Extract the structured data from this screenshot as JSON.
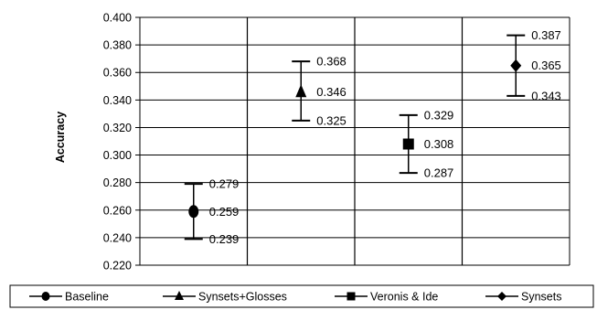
{
  "chart_data": {
    "type": "scatter",
    "variant": "error-bar",
    "title": "",
    "xlabel": "",
    "ylabel": "Accuracy",
    "ylim": [
      0.22,
      0.4
    ],
    "yticks": [
      "0.400",
      "0.380",
      "0.360",
      "0.340",
      "0.320",
      "0.300",
      "0.280",
      "0.260",
      "0.240",
      "0.220"
    ],
    "grid": true,
    "legend_position": "bottom",
    "series": [
      {
        "name": "Baseline",
        "marker": "circle",
        "x": 1,
        "mean": 0.259,
        "upper": 0.279,
        "lower": 0.239,
        "labels": {
          "upper": "0.279",
          "mean": "0.259",
          "lower": "0.239"
        }
      },
      {
        "name": "Synsets+Glosses",
        "marker": "triangle",
        "x": 2,
        "mean": 0.346,
        "upper": 0.368,
        "lower": 0.325,
        "labels": {
          "upper": "0.368",
          "mean": "0.346",
          "lower": "0.325"
        }
      },
      {
        "name": "Veronis & Ide",
        "marker": "square",
        "x": 3,
        "mean": 0.308,
        "upper": 0.329,
        "lower": 0.287,
        "labels": {
          "upper": "0.329",
          "mean": "0.308",
          "lower": "0.287"
        }
      },
      {
        "name": "Synsets",
        "marker": "diamond",
        "x": 4,
        "mean": 0.365,
        "upper": 0.387,
        "lower": 0.343,
        "labels": {
          "upper": "0.387",
          "mean": "0.365",
          "lower": "0.343"
        }
      }
    ],
    "colors": {
      "marks": "#000000",
      "grid": "#000000",
      "background": "#ffffff"
    }
  }
}
